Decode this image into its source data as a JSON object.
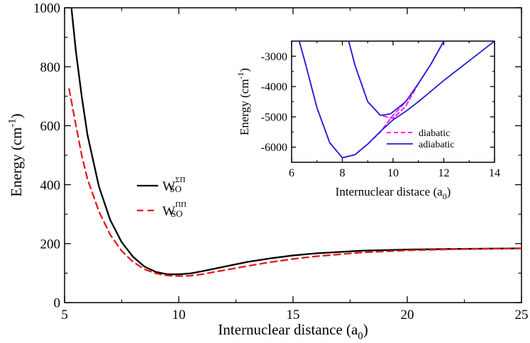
{
  "chart_data": [
    {
      "type": "line",
      "title": "",
      "xlabel": "Internuclear distance (a",
      "xlabel_sub": "0",
      "xlabel_end": ")",
      "ylabel": "Energy (cm",
      "ylabel_sup": "-1",
      "ylabel_end": ")",
      "xlim": [
        5,
        25
      ],
      "ylim": [
        0,
        1000
      ],
      "xticks": [
        5,
        10,
        15,
        20,
        25
      ],
      "yticks": [
        0,
        200,
        400,
        600,
        800,
        1000
      ],
      "legend_position": "left-center",
      "series": [
        {
          "name": "W_SO^ΣΠ",
          "legend_main": "W",
          "legend_sub": "SO",
          "legend_sup": "ΣΠ",
          "color": "#000000",
          "dash": "solid",
          "x": [
            5.3,
            5.5,
            5.75,
            6.0,
            6.5,
            7.0,
            7.5,
            8.0,
            8.5,
            9.0,
            9.5,
            10.0,
            10.5,
            11.0,
            12.0,
            13.0,
            14.0,
            15.0,
            16.0,
            18.0,
            20.0,
            22.0,
            25.0
          ],
          "y": [
            1000,
            850,
            700,
            570,
            395,
            280,
            205,
            155,
            122,
            104,
            96,
            96,
            99,
            106,
            122,
            138,
            150,
            160,
            167,
            176,
            180,
            182,
            184
          ]
        },
        {
          "name": "W_SO^ΠΠ",
          "legend_main": "W",
          "legend_sub": "SO",
          "legend_sup": "ΠΠ",
          "color": "#e31a1c",
          "dash": "dashed",
          "x": [
            5.2,
            5.5,
            5.75,
            6.0,
            6.5,
            7.0,
            7.5,
            8.0,
            8.5,
            9.0,
            9.5,
            10.0,
            10.5,
            11.0,
            12.0,
            13.0,
            14.0,
            15.0,
            16.0,
            18.0,
            20.0,
            22.0,
            25.0
          ],
          "y": [
            725,
            600,
            500,
            420,
            310,
            230,
            175,
            138,
            113,
            99,
            92,
            90,
            91,
            96,
            110,
            124,
            137,
            148,
            157,
            170,
            177,
            181,
            184
          ]
        }
      ]
    },
    {
      "type": "line",
      "title": "",
      "xlabel": "Internuclear distace (a",
      "xlabel_sub": "0",
      "xlabel_end": ")",
      "ylabel": "Energy (cm",
      "ylabel_sup": "-1",
      "ylabel_end": ")",
      "xlim": [
        6,
        14
      ],
      "ylim": [
        -6500,
        -2500
      ],
      "xticks": [
        6,
        8,
        10,
        12,
        14
      ],
      "yticks": [
        -6000,
        -5000,
        -4000,
        -3000
      ],
      "legend_position": "lower-right",
      "series": [
        {
          "name": "diabatic",
          "color": "#ff00ff",
          "dash": "dashed",
          "segments": [
            {
              "x": [
                6.3,
                6.5,
                7.0,
                7.5,
                8.0,
                8.5,
                9.0,
                9.5,
                10.0,
                10.5,
                11.0,
                11.5,
                12.0
              ],
              "y": [
                -2500,
                -3100,
                -4700,
                -5850,
                -6350,
                -6250,
                -5900,
                -5500,
                -4950,
                -4500,
                -3900,
                -3250,
                -2500
              ]
            },
            {
              "x": [
                8.25,
                8.5,
                9.0,
                9.5,
                10.0,
                10.5,
                11.0,
                11.5,
                12.0
              ],
              "y": [
                -2500,
                -3300,
                -4500,
                -4950,
                -5050,
                -4650,
                -3900,
                -3250,
                -2500
              ]
            }
          ]
        },
        {
          "name": "adiabatic",
          "color": "#1f1fd6",
          "dash": "solid",
          "segments": [
            {
              "x": [
                6.3,
                6.5,
                7.0,
                7.5,
                8.0,
                8.5,
                9.0,
                9.5,
                10.0,
                10.5,
                11.0,
                12.0,
                13.0,
                14.0
              ],
              "y": [
                -2500,
                -3100,
                -4700,
                -5850,
                -6350,
                -6250,
                -5900,
                -5480,
                -5100,
                -4820,
                -4500,
                -3800,
                -3150,
                -2500
              ]
            },
            {
              "x": [
                8.25,
                8.5,
                9.0,
                9.5,
                9.9,
                10.5,
                11.0,
                11.5,
                12.0
              ],
              "y": [
                -2500,
                -3300,
                -4500,
                -4950,
                -4900,
                -4500,
                -3900,
                -3250,
                -2500
              ]
            }
          ]
        }
      ]
    }
  ]
}
